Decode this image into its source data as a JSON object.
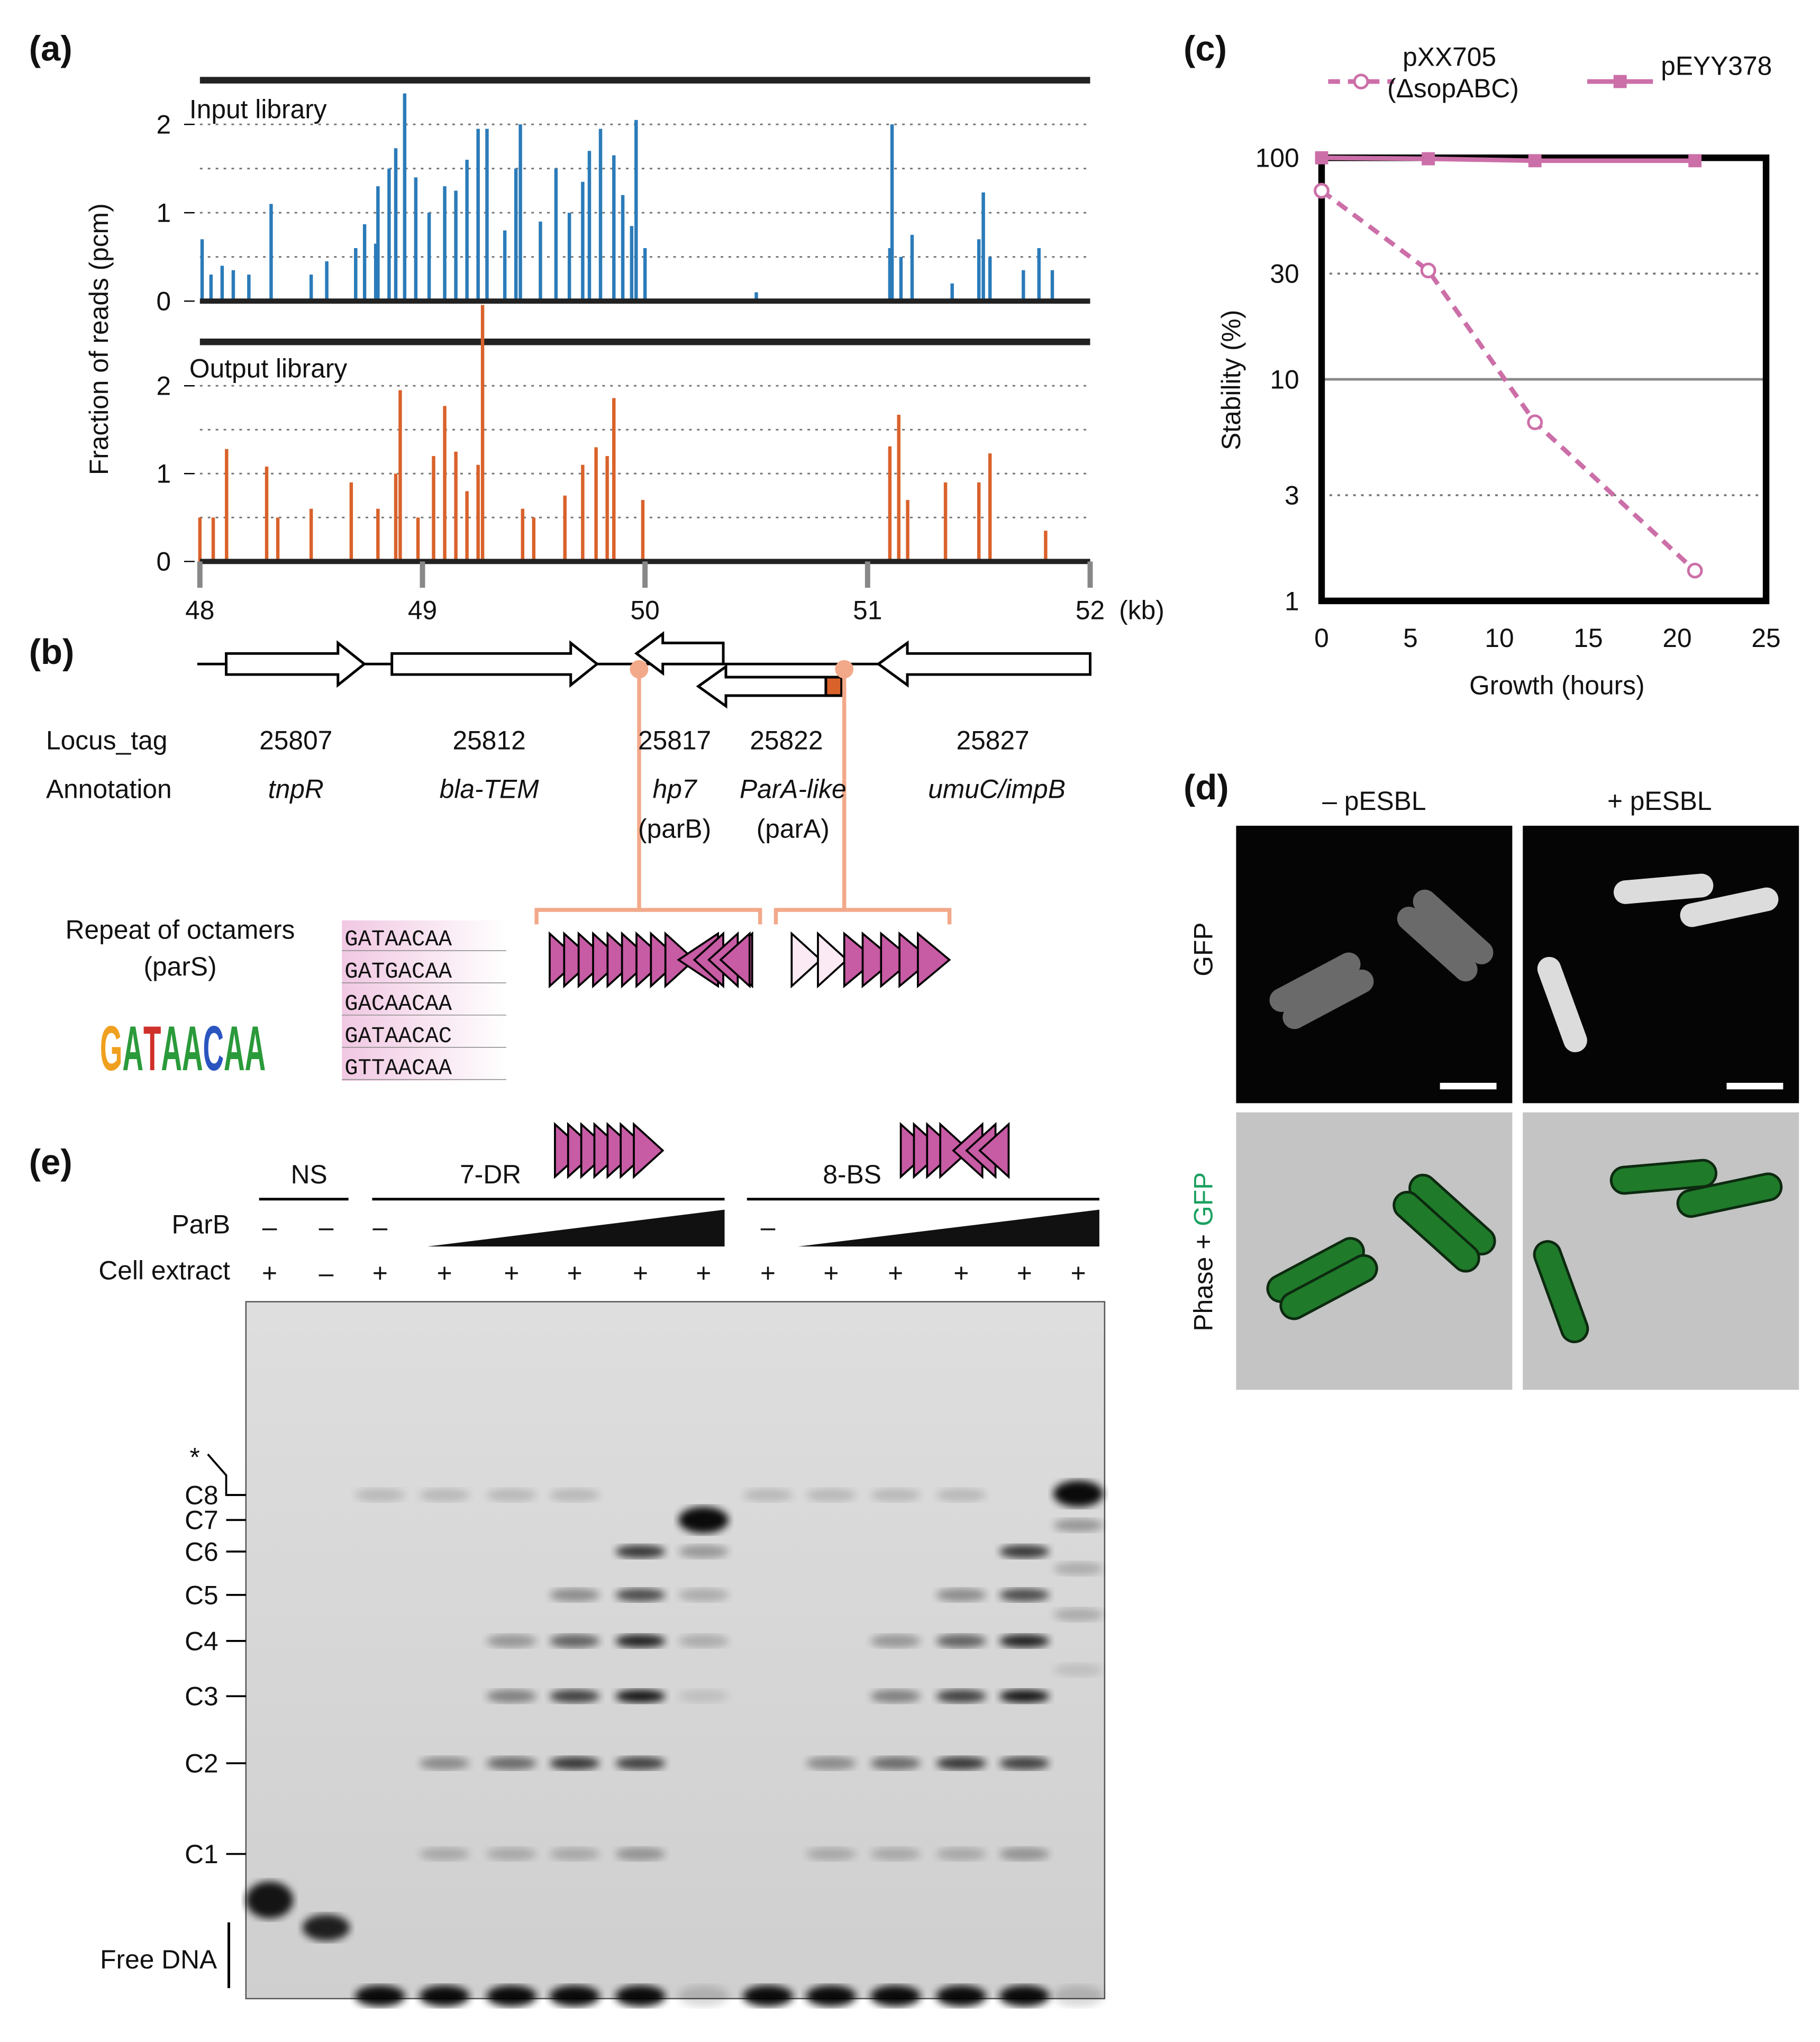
{
  "panel_labels": [
    "(a)",
    "(b)",
    "(c)",
    "(d)",
    "(e)"
  ],
  "chart_data": [
    {
      "type": "bar",
      "label": "Input library",
      "ylabel": "Fraction of reads (pcm)",
      "color": "#2b7bb9",
      "x": [
        48.01,
        48.05,
        48.1,
        48.15,
        48.22,
        48.32,
        48.5,
        48.57,
        48.7,
        48.74,
        48.79,
        48.8,
        48.85,
        48.88,
        48.92,
        48.97,
        49.03,
        49.1,
        49.15,
        49.2,
        49.25,
        49.29,
        49.37,
        49.42,
        49.44,
        49.53,
        49.6,
        49.66,
        49.72,
        49.75,
        49.8,
        49.86,
        49.9,
        49.94,
        49.96,
        50.0,
        50.5,
        51.1,
        51.11,
        51.15,
        51.2,
        51.38,
        51.5,
        51.52,
        51.55,
        51.7,
        51.77,
        51.83
      ],
      "values": [
        0.7,
        0.3,
        0.4,
        0.35,
        0.3,
        1.1,
        0.3,
        0.45,
        0.6,
        0.87,
        0.65,
        1.3,
        1.5,
        1.73,
        2.35,
        1.4,
        1.0,
        1.3,
        1.25,
        1.6,
        1.95,
        1.95,
        0.8,
        1.5,
        2.0,
        0.9,
        1.5,
        1.0,
        1.35,
        1.7,
        1.95,
        1.65,
        1.2,
        0.85,
        2.05,
        0.6,
        0.1,
        0.6,
        2.0,
        0.5,
        0.75,
        0.2,
        0.7,
        1.23,
        0.5,
        0.35,
        0.6,
        0.35
      ],
      "xlim": [
        48,
        52
      ],
      "ylim": [
        0,
        2.5
      ],
      "yticks": [
        0,
        1,
        2
      ],
      "ygrid": [
        0.5,
        1,
        1.5,
        2
      ]
    },
    {
      "type": "bar",
      "label": "Output library",
      "color": "#d9622b",
      "x": [
        48.0,
        48.06,
        48.12,
        48.3,
        48.35,
        48.5,
        48.68,
        48.8,
        48.88,
        48.9,
        48.98,
        49.05,
        49.1,
        49.15,
        49.2,
        49.25,
        49.27,
        49.45,
        49.5,
        49.64,
        49.72,
        49.78,
        49.83,
        49.86,
        49.99,
        51.1,
        51.14,
        51.18,
        51.35,
        51.5,
        51.55,
        51.8
      ],
      "values": [
        0.5,
        0.5,
        1.28,
        1.08,
        0.5,
        0.6,
        0.9,
        0.6,
        1.0,
        1.95,
        0.5,
        1.2,
        1.77,
        1.25,
        0.8,
        1.1,
        2.92,
        0.6,
        0.5,
        0.75,
        1.1,
        1.3,
        1.2,
        1.86,
        0.7,
        1.31,
        1.67,
        0.7,
        0.9,
        0.9,
        1.23,
        0.35
      ],
      "xlim": [
        48,
        52
      ],
      "xticks": [
        48,
        49,
        50,
        51,
        52
      ],
      "xlabel": "(kb)",
      "ylim": [
        0,
        2.5
      ],
      "yticks": [
        0,
        1,
        2
      ],
      "ygrid": [
        0.5,
        1,
        1.5,
        2
      ]
    },
    {
      "type": "line",
      "log_y": true,
      "xlabel": "Growth (hours)",
      "ylabel": "Stability (%)",
      "xlim": [
        0,
        25
      ],
      "xticks": [
        0,
        5,
        10,
        15,
        20,
        25
      ],
      "ylim": [
        1,
        100
      ],
      "yticks": [
        1,
        3,
        10,
        30,
        100
      ],
      "grid_dotted": [
        3,
        30
      ],
      "grid_solid": [
        10
      ],
      "series": [
        {
          "name": "pXX705 (ΔsopABC)",
          "color": "#cc6fa8",
          "dashed": true,
          "marker": "circle",
          "x": [
            0,
            6,
            12,
            21
          ],
          "values": [
            71,
            31,
            6.4,
            1.37
          ]
        },
        {
          "name": "pEYY378",
          "color": "#cc6fa8",
          "dashed": false,
          "marker": "square",
          "x": [
            0,
            6,
            12,
            21
          ],
          "values": [
            100,
            99,
            97,
            97
          ]
        }
      ]
    }
  ],
  "gene_map": {
    "row_titles": [
      "Locus_tag",
      "Annotation"
    ],
    "locus_tags": [
      "25807",
      "25812",
      "25817",
      "25822",
      "25827"
    ],
    "annotations": [
      "tnpR",
      "bla-TEM",
      "hp7",
      "ParA-like",
      "umuC/impB"
    ],
    "annotation_notes": [
      "(parB)",
      "(parA)"
    ],
    "pars_title": "Repeat of octamers",
    "pars_note": "(parS)",
    "logo": "GATAACAA",
    "octamers": [
      "GATAACAA",
      "GATGACAA",
      "GACAACAA",
      "GATAACAC",
      "GTTAACAA"
    ]
  },
  "microscopy": {
    "columns": [
      "– pESBL",
      "+ pESBL"
    ],
    "rows": [
      "GFP",
      "Phase +",
      "GFP"
    ]
  },
  "gel": {
    "groups": [
      "NS",
      "7-DR",
      "8-BS"
    ],
    "row_titles": [
      "ParB",
      "Cell extract"
    ],
    "parb": [
      "–",
      "–",
      "–",
      "–"
    ],
    "cell_extract": [
      "+",
      "–",
      "+",
      "+",
      "+",
      "+",
      "+",
      "+",
      "+",
      "+",
      "+",
      "+",
      "+",
      "+"
    ],
    "bands": [
      "*",
      "C8",
      "C7",
      "C6",
      "C5",
      "C4",
      "C3",
      "C2",
      "C1"
    ],
    "free": "Free DNA"
  }
}
